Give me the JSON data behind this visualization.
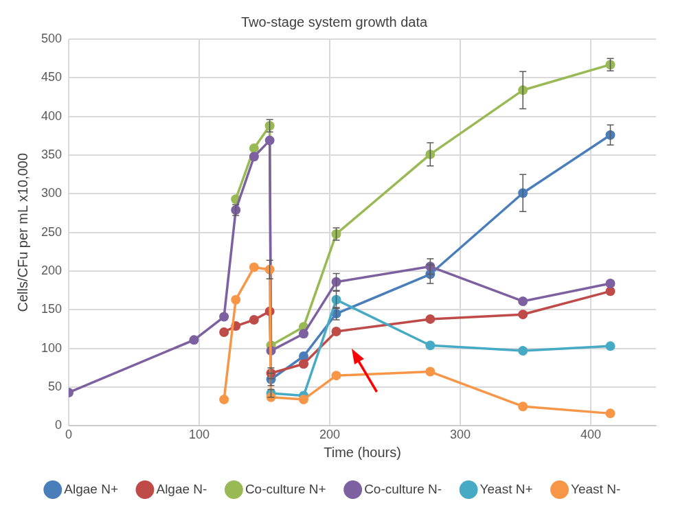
{
  "chart_data": {
    "type": "line",
    "title": "Two-stage system growth data",
    "xlabel": "Time (hours)",
    "ylabel": "Cells/CFu per mL x10,000",
    "xlim": [
      0,
      450
    ],
    "xticks": [
      0,
      100,
      200,
      300,
      400
    ],
    "ylim": [
      0,
      500
    ],
    "yticks": [
      0,
      50,
      100,
      150,
      200,
      250,
      300,
      350,
      400,
      450,
      500
    ],
    "grid": true,
    "legend": "bottom",
    "marker": "circle",
    "line_style": "solid",
    "series": [
      {
        "name": "Algae N+",
        "color": "#4a7ebb",
        "x": [
          155,
          180,
          205,
          277,
          348,
          415
        ],
        "values": [
          60,
          90,
          145,
          196,
          301,
          376
        ],
        "errors": [
          8,
          null,
          8,
          12,
          24,
          13
        ]
      },
      {
        "name": "Algae N-",
        "color": "#be4b48",
        "x": [
          119,
          128,
          142,
          154,
          155,
          180,
          205,
          277,
          348,
          415
        ],
        "values": [
          121,
          129,
          137,
          148,
          68,
          80,
          122,
          138,
          144,
          174
        ],
        "errors": [
          null,
          null,
          null,
          null,
          7,
          null,
          null,
          null,
          null,
          null
        ]
      },
      {
        "name": "Co-culture N+",
        "color": "#98b954",
        "x": [
          128,
          142,
          154,
          155,
          180,
          205,
          277,
          348,
          415
        ],
        "values": [
          293,
          359,
          388,
          104,
          128,
          248,
          351,
          434,
          467
        ],
        "errors": [
          null,
          null,
          8,
          null,
          null,
          8,
          15,
          24,
          8
        ]
      },
      {
        "name": "Co-culture N-",
        "color": "#7d60a0",
        "x": [
          0,
          96,
          119,
          128,
          142,
          154,
          155,
          180,
          205,
          277,
          348,
          415
        ],
        "values": [
          43,
          111,
          141,
          279,
          348,
          369,
          97,
          119,
          186,
          206,
          161,
          184
        ],
        "errors": [
          null,
          null,
          null,
          7,
          null,
          null,
          null,
          null,
          11,
          10,
          null,
          null
        ]
      },
      {
        "name": "Yeast N+",
        "color": "#46aac5",
        "x": [
          155,
          180,
          205,
          277,
          348,
          415
        ],
        "values": [
          42,
          39,
          163,
          104,
          97,
          103
        ],
        "errors": [
          5,
          null,
          11,
          null,
          null,
          null
        ]
      },
      {
        "name": "Yeast N-",
        "color": "#f79646",
        "x": [
          119,
          128,
          142,
          154,
          155,
          180,
          205,
          277,
          348,
          415
        ],
        "values": [
          34,
          163,
          205,
          202,
          37,
          34,
          65,
          70,
          25,
          16
        ],
        "errors": [
          null,
          null,
          null,
          12,
          null,
          null,
          null,
          null,
          null,
          null
        ]
      }
    ]
  }
}
